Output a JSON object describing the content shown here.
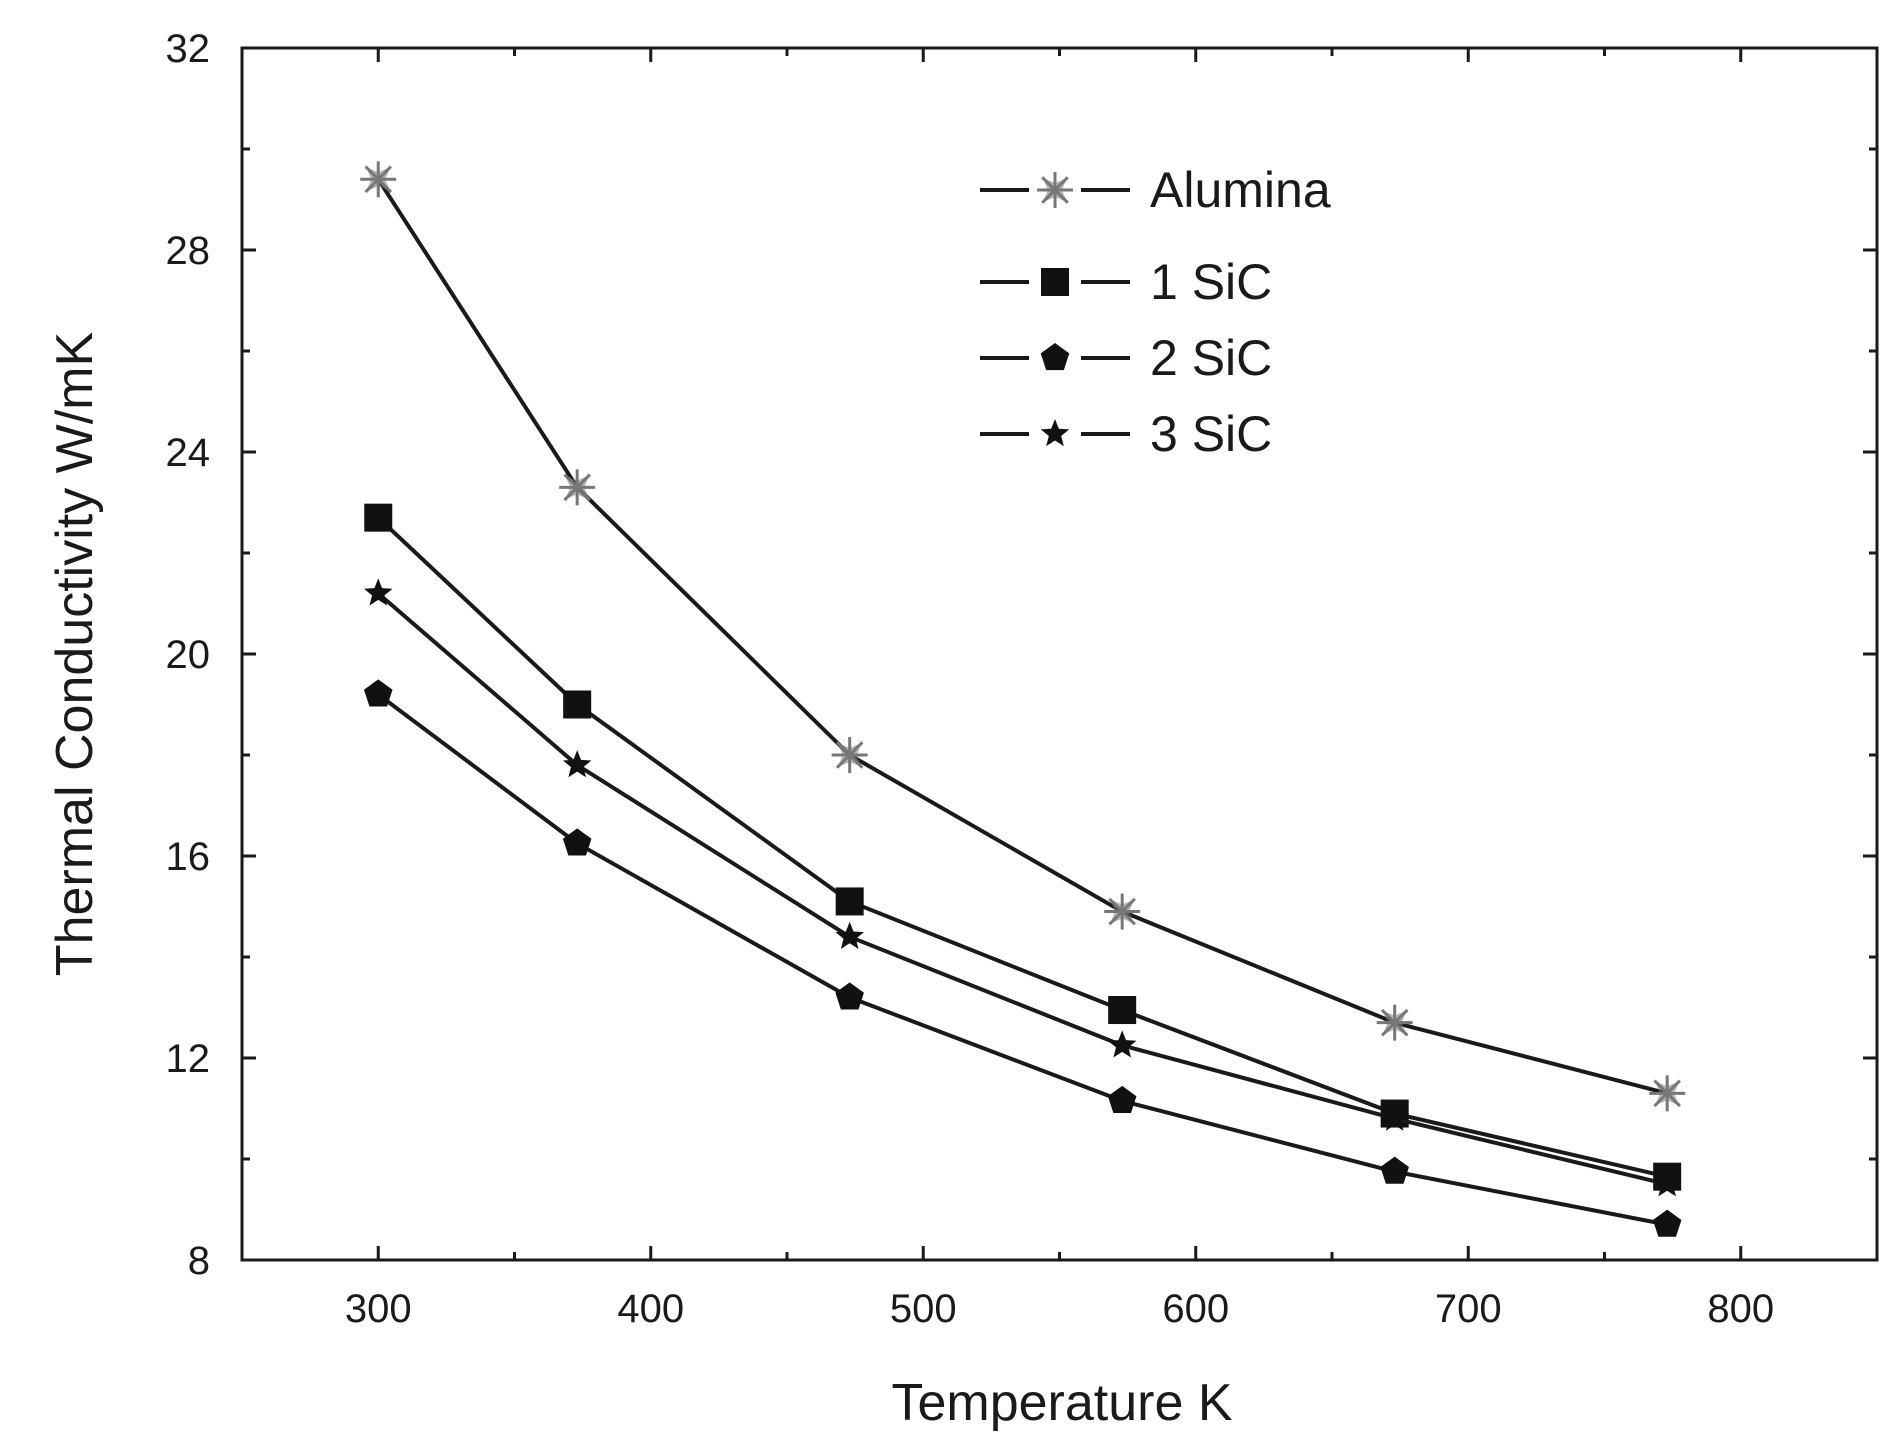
{
  "chart_data": {
    "type": "line",
    "title": "",
    "xlabel": "Temperature K",
    "ylabel": "Thermal Conductivity W/mK",
    "xlim": [
      250,
      850
    ],
    "ylim": [
      8,
      32
    ],
    "xticks": [
      300,
      400,
      500,
      600,
      700,
      800
    ],
    "yticks": [
      8,
      12,
      16,
      20,
      24,
      28,
      32
    ],
    "x_minor_step": 50,
    "y_minor_step": 2,
    "grid": false,
    "legend_position": "top-center",
    "x": [
      300,
      373,
      473,
      573,
      673,
      773
    ],
    "series": [
      {
        "name": "Alumina",
        "marker": "asterisk-star",
        "values": [
          29.4,
          23.3,
          18.0,
          14.9,
          12.7,
          11.3
        ]
      },
      {
        "name": "1 SiC",
        "marker": "square",
        "values": [
          22.7,
          19.0,
          15.1,
          12.95,
          10.9,
          9.65
        ]
      },
      {
        "name": "2 SiC",
        "marker": "pentagon",
        "values": [
          19.2,
          16.25,
          13.2,
          11.15,
          9.75,
          8.7
        ]
      },
      {
        "name": "3 SiC",
        "marker": "star",
        "values": [
          21.2,
          17.8,
          14.4,
          12.25,
          10.8,
          9.5
        ]
      }
    ],
    "line_color": "#1a1a1a",
    "marker_color": "#111111",
    "alumina_marker_color": "#777777"
  }
}
